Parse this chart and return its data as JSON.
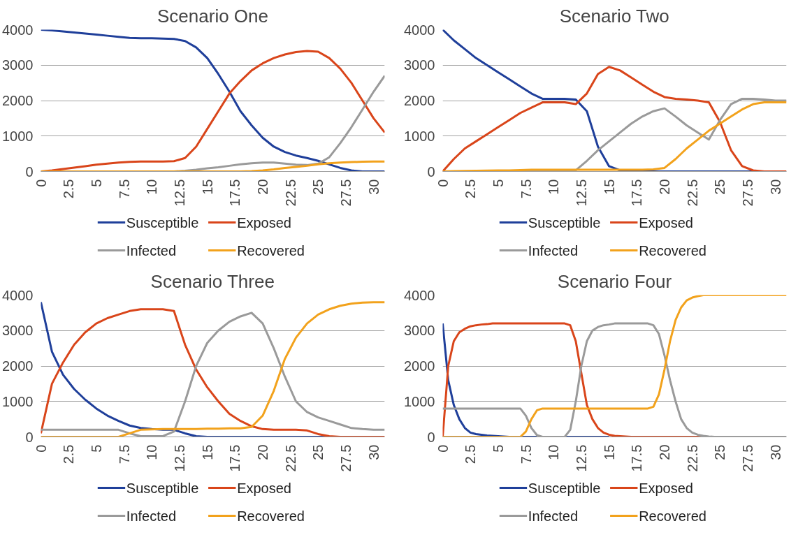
{
  "chart_data": [
    {
      "type": "line",
      "title": "Scenario One",
      "x": [
        0,
        1,
        2,
        3,
        4,
        5,
        6,
        7,
        8,
        9,
        10,
        11,
        12,
        13,
        14,
        15,
        16,
        17,
        18,
        19,
        20,
        21,
        22,
        23,
        24,
        25,
        26,
        27,
        28,
        29,
        30,
        31
      ],
      "xlim": [
        0,
        31
      ],
      "xticks": [
        0,
        2.5,
        5,
        7.5,
        10,
        12.5,
        15,
        17.5,
        20,
        22.5,
        25,
        27.5,
        30
      ],
      "ylim": [
        0,
        4000
      ],
      "yticks": [
        0,
        1000,
        2000,
        3000,
        4000
      ],
      "grid": "y",
      "legend": "bottom",
      "series": [
        {
          "name": "Susceptible",
          "color": "#1f3f9a",
          "values": [
            4000,
            3980,
            3950,
            3920,
            3890,
            3860,
            3830,
            3800,
            3770,
            3760,
            3760,
            3750,
            3740,
            3680,
            3500,
            3200,
            2750,
            2250,
            1700,
            1300,
            950,
            700,
            550,
            450,
            380,
            300,
            200,
            100,
            30,
            0,
            0,
            0
          ]
        },
        {
          "name": "Exposed",
          "color": "#d9451a",
          "values": [
            0,
            30,
            70,
            110,
            150,
            190,
            220,
            250,
            270,
            280,
            280,
            280,
            290,
            380,
            700,
            1200,
            1700,
            2200,
            2550,
            2850,
            3050,
            3200,
            3300,
            3370,
            3400,
            3380,
            3200,
            2900,
            2500,
            2000,
            1500,
            1100
          ]
        },
        {
          "name": "Infected",
          "color": "#9a9a9a",
          "values": [
            0,
            0,
            0,
            0,
            0,
            0,
            0,
            0,
            0,
            0,
            0,
            0,
            0,
            20,
            50,
            90,
            120,
            160,
            200,
            230,
            250,
            250,
            220,
            190,
            180,
            220,
            400,
            800,
            1250,
            1750,
            2250,
            2700
          ]
        },
        {
          "name": "Recovered",
          "color": "#f2a21c",
          "values": [
            0,
            0,
            0,
            0,
            0,
            0,
            0,
            0,
            0,
            0,
            0,
            0,
            0,
            0,
            0,
            0,
            0,
            0,
            0,
            10,
            30,
            60,
            100,
            130,
            160,
            200,
            230,
            250,
            265,
            275,
            280,
            280
          ]
        }
      ]
    },
    {
      "type": "line",
      "title": "Scenario Two",
      "x": [
        0,
        1,
        2,
        3,
        4,
        5,
        6,
        7,
        8,
        9,
        10,
        11,
        12,
        13,
        14,
        15,
        16,
        17,
        18,
        19,
        20,
        21,
        22,
        23,
        24,
        25,
        26,
        27,
        28,
        29,
        30,
        31
      ],
      "xlim": [
        0,
        31
      ],
      "xticks": [
        0,
        2.5,
        5,
        7.5,
        10,
        12.5,
        15,
        17.5,
        20,
        22.5,
        25,
        27.5,
        30
      ],
      "ylim": [
        0,
        4000
      ],
      "yticks": [
        0,
        1000,
        2000,
        3000,
        4000
      ],
      "grid": "y",
      "legend": "bottom",
      "series": [
        {
          "name": "Susceptible",
          "color": "#1f3f9a",
          "values": [
            4000,
            3700,
            3450,
            3200,
            3000,
            2800,
            2600,
            2400,
            2200,
            2050,
            2050,
            2050,
            2030,
            1700,
            700,
            150,
            30,
            0,
            0,
            0,
            0,
            0,
            0,
            0,
            0,
            0,
            0,
            0,
            0,
            0,
            null,
            null
          ]
        },
        {
          "name": "Exposed",
          "color": "#d9451a",
          "values": [
            0,
            350,
            650,
            850,
            1050,
            1250,
            1450,
            1650,
            1800,
            1950,
            1950,
            1950,
            1900,
            2200,
            2750,
            2950,
            2850,
            2650,
            2450,
            2250,
            2100,
            2050,
            2030,
            2000,
            1950,
            1400,
            600,
            150,
            30,
            0,
            0,
            0
          ]
        },
        {
          "name": "Infected",
          "color": "#9a9a9a",
          "values": [
            0,
            0,
            0,
            0,
            0,
            0,
            0,
            0,
            0,
            0,
            0,
            0,
            30,
            300,
            600,
            850,
            1100,
            1350,
            1550,
            1700,
            1780,
            1550,
            1300,
            1100,
            900,
            1450,
            1900,
            2050,
            2050,
            2030,
            2000,
            2000
          ]
        },
        {
          "name": "Recovered",
          "color": "#f2a21c",
          "values": [
            0,
            10,
            15,
            20,
            25,
            30,
            30,
            40,
            50,
            50,
            50,
            50,
            50,
            50,
            50,
            50,
            50,
            50,
            50,
            60,
            100,
            350,
            650,
            900,
            1150,
            1350,
            1550,
            1750,
            1900,
            1950,
            1950,
            1950
          ]
        }
      ]
    },
    {
      "type": "line",
      "title": "Scenario Three",
      "x": [
        0,
        1,
        2,
        3,
        4,
        5,
        6,
        7,
        8,
        9,
        10,
        11,
        12,
        13,
        14,
        15,
        16,
        17,
        18,
        19,
        20,
        21,
        22,
        23,
        24,
        25,
        26,
        27,
        28,
        29,
        30,
        31
      ],
      "xlim": [
        0,
        31
      ],
      "xticks": [
        0,
        2.5,
        5,
        7.5,
        10,
        12.5,
        15,
        17.5,
        20,
        22.5,
        25,
        27.5,
        30
      ],
      "ylim": [
        0,
        4000
      ],
      "yticks": [
        0,
        1000,
        2000,
        3000,
        4000
      ],
      "grid": "y",
      "legend": "bottom",
      "series": [
        {
          "name": "Susceptible",
          "color": "#1f3f9a",
          "values": [
            3800,
            2400,
            1750,
            1350,
            1050,
            800,
            600,
            450,
            320,
            250,
            220,
            200,
            200,
            100,
            20,
            0,
            0,
            0,
            0,
            0,
            0,
            0,
            0,
            0,
            0,
            0,
            0,
            null,
            null,
            null,
            null,
            null
          ]
        },
        {
          "name": "Exposed",
          "color": "#d9451a",
          "values": [
            100,
            1500,
            2100,
            2600,
            2950,
            3200,
            3350,
            3450,
            3550,
            3600,
            3600,
            3600,
            3550,
            2600,
            1900,
            1400,
            1000,
            650,
            450,
            300,
            220,
            200,
            200,
            200,
            180,
            80,
            20,
            0,
            0,
            0,
            0,
            0
          ]
        },
        {
          "name": "Infected",
          "color": "#9a9a9a",
          "values": [
            200,
            200,
            200,
            200,
            200,
            200,
            200,
            200,
            100,
            20,
            20,
            20,
            150,
            1000,
            2000,
            2650,
            3000,
            3250,
            3400,
            3500,
            3200,
            2500,
            1700,
            1000,
            700,
            550,
            450,
            350,
            250,
            220,
            200,
            200
          ]
        },
        {
          "name": "Recovered",
          "color": "#f2a21c",
          "values": [
            0,
            0,
            0,
            0,
            0,
            0,
            0,
            0,
            100,
            200,
            210,
            220,
            220,
            220,
            220,
            230,
            230,
            240,
            240,
            280,
            600,
            1300,
            2200,
            2800,
            3200,
            3450,
            3600,
            3700,
            3760,
            3790,
            3800,
            3800
          ]
        }
      ]
    },
    {
      "type": "line",
      "title": "Scenario Four",
      "x": [
        0,
        0.5,
        1,
        1.5,
        2,
        2.5,
        3,
        3.5,
        4,
        4.5,
        5,
        5.5,
        6,
        6.5,
        7,
        7.5,
        8,
        8.5,
        9,
        9.5,
        10,
        10.5,
        11,
        11.5,
        12,
        12.5,
        13,
        13.5,
        14,
        14.5,
        15,
        15.5,
        16,
        16.5,
        17,
        17.5,
        18,
        18.5,
        19,
        19.5,
        20,
        20.5,
        21,
        21.5,
        22,
        22.5,
        23,
        23.5,
        24,
        24.5,
        25,
        25.5,
        26,
        26.5,
        27,
        27.5,
        28,
        28.5,
        29,
        29.5,
        30,
        30.5,
        31
      ],
      "xlim": [
        0,
        31
      ],
      "xticks": [
        0,
        2.5,
        5,
        7.5,
        10,
        12.5,
        15,
        17.5,
        20,
        22.5,
        25,
        27.5,
        30
      ],
      "ylim": [
        0,
        4000
      ],
      "yticks": [
        0,
        1000,
        2000,
        3000,
        4000
      ],
      "grid": "y",
      "legend": "bottom",
      "series": [
        {
          "name": "Susceptible",
          "color": "#1f3f9a",
          "values": [
            3200,
            1600,
            900,
            500,
            250,
            120,
            80,
            60,
            40,
            30,
            20,
            10,
            0,
            null,
            0,
            0,
            0,
            0,
            null,
            null,
            null,
            null,
            0,
            0,
            0,
            0,
            0,
            0,
            0,
            0,
            0,
            null,
            null,
            null,
            null,
            null,
            null,
            null,
            null,
            null,
            null,
            null,
            null,
            null,
            null,
            null,
            null,
            null,
            null,
            null,
            null,
            null,
            null,
            null,
            null,
            null,
            null,
            null,
            null,
            null,
            null,
            null,
            null
          ]
        },
        {
          "name": "Exposed",
          "color": "#d9451a",
          "values": [
            0,
            2000,
            2700,
            2950,
            3050,
            3120,
            3150,
            3170,
            3180,
            3200,
            3200,
            3200,
            3200,
            3200,
            3200,
            3200,
            3200,
            3200,
            3200,
            3200,
            3200,
            3200,
            3200,
            3150,
            2700,
            1800,
            900,
            500,
            250,
            120,
            60,
            30,
            20,
            10,
            0,
            0,
            0,
            0,
            0,
            0,
            0,
            0,
            0,
            0,
            0,
            0,
            0,
            0,
            null,
            null,
            null,
            null,
            null,
            null,
            null,
            null,
            null,
            null,
            null,
            null,
            null,
            null,
            null
          ]
        },
        {
          "name": "Infected",
          "color": "#9a9a9a",
          "values": [
            800,
            800,
            800,
            800,
            800,
            800,
            800,
            800,
            800,
            800,
            800,
            800,
            800,
            800,
            800,
            600,
            250,
            50,
            0,
            0,
            0,
            0,
            0,
            200,
            1000,
            2000,
            2700,
            3000,
            3100,
            3150,
            3170,
            3200,
            3200,
            3200,
            3200,
            3200,
            3200,
            3200,
            3150,
            2900,
            2300,
            1600,
            1000,
            500,
            250,
            120,
            60,
            30,
            10,
            0,
            0,
            0,
            0,
            0,
            0,
            0,
            0,
            0,
            0,
            0,
            0,
            0,
            0
          ]
        },
        {
          "name": "Recovered",
          "color": "#f2a21c",
          "values": [
            0,
            0,
            0,
            0,
            0,
            0,
            0,
            0,
            0,
            0,
            0,
            0,
            0,
            0,
            0,
            150,
            500,
            750,
            800,
            800,
            800,
            800,
            800,
            800,
            800,
            800,
            800,
            800,
            800,
            800,
            800,
            800,
            800,
            800,
            800,
            800,
            800,
            800,
            850,
            1200,
            1900,
            2700,
            3300,
            3650,
            3850,
            3930,
            3970,
            4000,
            4000,
            4000,
            4000,
            4000,
            4000,
            4000,
            4000,
            4000,
            4000,
            4000,
            4000,
            4000,
            4000,
            4000,
            4000
          ]
        }
      ]
    }
  ]
}
